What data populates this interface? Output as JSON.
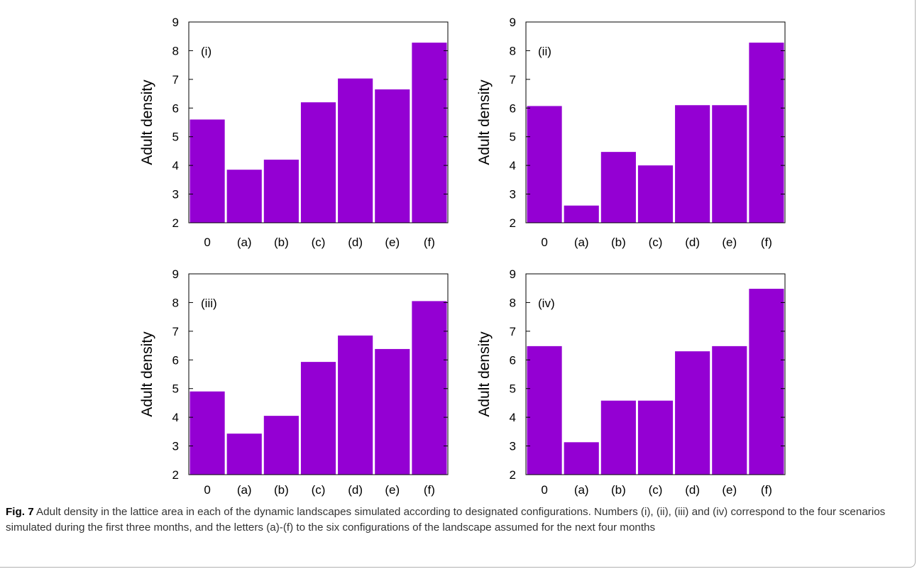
{
  "figure": {
    "caption_label": "Fig. 7",
    "caption_text": " Adult density in the lattice area in each of the dynamic landscapes simulated according to designated configurations. Numbers (i), (ii), (iii) and (iv) correspond to the four scenarios simulated during the first three months, and the letters (a)-(f) to the six configurations of the landscape assumed for the next four months"
  },
  "colors": {
    "bar": "#9400d3"
  },
  "chart_data": [
    {
      "type": "bar",
      "panel_label": "(i)",
      "categories": [
        "0",
        "(a)",
        "(b)",
        "(c)",
        "(d)",
        "(e)",
        "(f)"
      ],
      "values": [
        5.6,
        3.85,
        4.2,
        6.2,
        7.03,
        6.65,
        8.28
      ],
      "ylabel": "Adult density",
      "ylim": [
        2,
        9
      ],
      "yticks": [
        "2",
        "3",
        "4",
        "5",
        "6",
        "7",
        "8",
        "9"
      ]
    },
    {
      "type": "bar",
      "panel_label": "(ii)",
      "categories": [
        "0",
        "(a)",
        "(b)",
        "(c)",
        "(d)",
        "(e)",
        "(f)"
      ],
      "values": [
        6.07,
        2.6,
        4.47,
        4.0,
        6.1,
        6.1,
        8.28
      ],
      "ylabel": "Adult density",
      "ylim": [
        2,
        9
      ],
      "yticks": [
        "2",
        "3",
        "4",
        "5",
        "6",
        "7",
        "8",
        "9"
      ]
    },
    {
      "type": "bar",
      "panel_label": "(iii)",
      "categories": [
        "0",
        "(a)",
        "(b)",
        "(c)",
        "(d)",
        "(e)",
        "(f)"
      ],
      "values": [
        4.9,
        3.43,
        4.05,
        5.93,
        6.85,
        6.38,
        8.05
      ],
      "ylabel": "Adult density",
      "ylim": [
        2,
        9
      ],
      "yticks": [
        "2",
        "3",
        "4",
        "5",
        "6",
        "7",
        "8",
        "9"
      ]
    },
    {
      "type": "bar",
      "panel_label": "(iv)",
      "categories": [
        "0",
        "(a)",
        "(b)",
        "(c)",
        "(d)",
        "(e)",
        "(f)"
      ],
      "values": [
        6.48,
        3.13,
        4.58,
        4.58,
        6.3,
        6.48,
        8.48
      ],
      "ylabel": "Adult density",
      "ylim": [
        2,
        9
      ],
      "yticks": [
        "2",
        "3",
        "4",
        "5",
        "6",
        "7",
        "8",
        "9"
      ]
    }
  ]
}
